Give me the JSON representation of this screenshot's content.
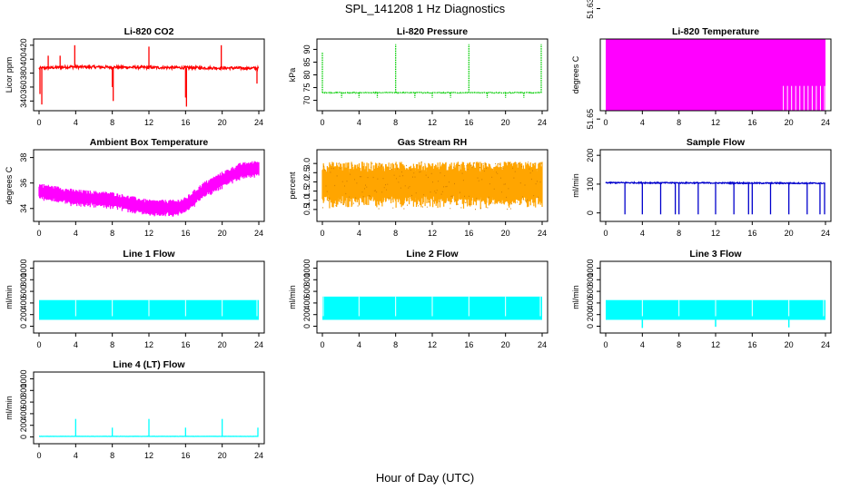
{
  "figure": {
    "title": "SPL_141208  1 Hz Diagnostics",
    "xlabel": "Hour of Day (UTC)"
  },
  "chart_data": [
    {
      "type": "line",
      "title": "Li-820 CO2",
      "ylabel": "Licor ppm",
      "color": "#ff0000",
      "xlim": [
        0,
        24
      ],
      "ylim": [
        330,
        425
      ],
      "yticks": [
        340,
        360,
        380,
        400,
        420
      ],
      "xticks": [
        0,
        4,
        8,
        12,
        16,
        20,
        24
      ],
      "style": "noisy",
      "baseline": [
        [
          0,
          387
        ],
        [
          3.5,
          389
        ],
        [
          24,
          387
        ]
      ],
      "noise": 2,
      "spikes": [
        [
          0.1,
          350
        ],
        [
          0.3,
          335
        ],
        [
          1.0,
          405
        ],
        [
          2.3,
          405
        ],
        [
          3.9,
          420
        ],
        [
          8.0,
          360
        ],
        [
          8.1,
          340
        ],
        [
          12.0,
          418
        ],
        [
          16.0,
          345
        ],
        [
          16.1,
          332
        ],
        [
          19.9,
          420
        ],
        [
          23.8,
          365
        ]
      ]
    },
    {
      "type": "line",
      "title": "Li-820 Pressure",
      "ylabel": "kPa",
      "color": "#00cc00",
      "xlim": [
        0,
        24
      ],
      "ylim": [
        67,
        93
      ],
      "yticks": [
        70,
        75,
        80,
        85,
        90
      ],
      "xticks": [
        0,
        4,
        8,
        12,
        16,
        20,
        24
      ],
      "style": "dotted",
      "baseline": [
        [
          0,
          73
        ],
        [
          24,
          73
        ]
      ],
      "noise": 0.15,
      "spikes": [
        [
          0.0,
          89
        ],
        [
          2.1,
          71
        ],
        [
          4.0,
          71
        ],
        [
          6.0,
          71
        ],
        [
          8.0,
          92
        ],
        [
          10.1,
          71
        ],
        [
          12.0,
          71
        ],
        [
          14.0,
          71
        ],
        [
          16.0,
          92
        ],
        [
          18.0,
          71
        ],
        [
          20.0,
          71
        ],
        [
          22.0,
          71
        ],
        [
          23.9,
          92
        ]
      ]
    },
    {
      "type": "line",
      "title": "Li-820 Temperature",
      "ylabel": "degrees C",
      "color": "#ff00ff",
      "xlim": [
        0,
        24
      ],
      "ylim": [
        51.648,
        51.636
      ],
      "ylim_note": "value axis shows only two ticks",
      "yticks": [
        51.65,
        51.63
      ],
      "ytick_labels": [
        "51.65",
        "51.63"
      ],
      "xticks": [
        0,
        4,
        8,
        12,
        16,
        20,
        24
      ],
      "style": "block",
      "block_from": 51.65,
      "block_to": 51.63,
      "gaps_after": 19.4
    },
    {
      "type": "line",
      "title": "Ambient Box Temperature",
      "ylabel": "degrees C",
      "color": "#ff00ff",
      "xlim": [
        0,
        24
      ],
      "ylim": [
        33.2,
        38.4
      ],
      "yticks": [
        34,
        36,
        38
      ],
      "xticks": [
        0,
        4,
        8,
        12,
        16,
        20,
        24
      ],
      "style": "band",
      "band_center": [
        [
          0,
          35.3
        ],
        [
          4,
          34.8
        ],
        [
          8,
          34.6
        ],
        [
          12,
          34.0
        ],
        [
          15,
          34.0
        ],
        [
          16,
          34.2
        ],
        [
          18,
          35.4
        ],
        [
          20,
          36.2
        ],
        [
          22,
          36.9
        ],
        [
          24,
          37.1
        ]
      ],
      "band_half_width": 0.7
    },
    {
      "type": "line",
      "title": "Gas Stream RH",
      "ylabel": "percent",
      "color": "#ffa500",
      "xlim": [
        0,
        24
      ],
      "ylim": [
        0.0,
        3.6
      ],
      "yticks": [
        0.5,
        1.5,
        2.5
      ],
      "ytick_labels": [
        "0.5",
        "1.5",
        "2.5"
      ],
      "yticks_extra": [
        1.0,
        2.0,
        3.0
      ],
      "ytick_labels_extra": [
        "1.0",
        "2.0",
        "3.0"
      ],
      "xticks": [
        0,
        4,
        8,
        12,
        16,
        20,
        24
      ],
      "style": "band",
      "band_center": [
        [
          0,
          1.8
        ],
        [
          24,
          1.8
        ]
      ],
      "band_half_width": 1.3
    },
    {
      "type": "line",
      "title": "Sample Flow",
      "ylabel": "ml/min",
      "color": "#0000cc",
      "xlim": [
        0,
        24
      ],
      "ylim": [
        -20,
        210
      ],
      "yticks": [
        0,
        100,
        200
      ],
      "xticks": [
        0,
        4,
        8,
        12,
        16,
        20,
        24
      ],
      "style": "noisy",
      "baseline": [
        [
          0,
          105
        ],
        [
          24,
          103
        ]
      ],
      "noise": 2,
      "spikes": [
        [
          2.1,
          -5
        ],
        [
          4.0,
          -5
        ],
        [
          6.0,
          -5
        ],
        [
          7.6,
          -5
        ],
        [
          8.0,
          -5
        ],
        [
          10.1,
          -5
        ],
        [
          12.0,
          -5
        ],
        [
          14.0,
          -5
        ],
        [
          15.6,
          -5
        ],
        [
          16.0,
          -5
        ],
        [
          18.0,
          -5
        ],
        [
          20.0,
          -5
        ],
        [
          22.0,
          -5
        ],
        [
          23.4,
          -5
        ],
        [
          23.9,
          -5
        ]
      ]
    },
    {
      "type": "line",
      "title": "Line 1 Flow",
      "ylabel": "ml/min",
      "color": "#00ffff",
      "xlim": [
        0,
        24
      ],
      "ylim": [
        -70,
        1070
      ],
      "yticks": [
        0,
        200,
        400,
        600,
        800,
        1000
      ],
      "xticks": [
        0,
        4,
        8,
        12,
        16,
        20,
        24
      ],
      "style": "block",
      "block_from": 110,
      "block_to": 450,
      "white_gaps": [
        4.0,
        8.0,
        12.0,
        16.0,
        20.0,
        23.8
      ]
    },
    {
      "type": "line",
      "title": "Line 2 Flow",
      "ylabel": "ml/min",
      "color": "#00ffff",
      "xlim": [
        0,
        24
      ],
      "ylim": [
        -70,
        1070
      ],
      "yticks": [
        0,
        200,
        400,
        600,
        800,
        1000
      ],
      "xticks": [
        0,
        4,
        8,
        12,
        16,
        20,
        24
      ],
      "style": "block",
      "block_from": 110,
      "block_to": 510,
      "white_gaps": [
        0.1,
        4.0,
        8.0,
        12.0,
        16.0,
        20.0,
        23.8
      ]
    },
    {
      "type": "line",
      "title": "Line 3 Flow",
      "ylabel": "ml/min",
      "color": "#00ffff",
      "xlim": [
        0,
        24
      ],
      "ylim": [
        -70,
        1070
      ],
      "yticks": [
        0,
        200,
        400,
        600,
        800,
        1000
      ],
      "xticks": [
        0,
        4,
        8,
        12,
        16,
        20,
        24
      ],
      "style": "block",
      "block_from": 110,
      "block_to": 450,
      "white_gaps": [
        4.0,
        8.0,
        12.0,
        16.0,
        20.0,
        23.8
      ],
      "dips": [
        [
          4.0,
          -30
        ],
        [
          12.0,
          -10
        ],
        [
          20.0,
          -20
        ]
      ]
    },
    {
      "type": "line",
      "title": "Line 4 (LT) Flow",
      "ylabel": "ml/min",
      "color": "#00ffff",
      "xlim": [
        0,
        24
      ],
      "ylim": [
        -70,
        1070
      ],
      "yticks": [
        0,
        200,
        400,
        600,
        800,
        1000
      ],
      "xticks": [
        0,
        4,
        8,
        12,
        16,
        20,
        24
      ],
      "style": "noisy",
      "baseline": [
        [
          0,
          10
        ],
        [
          24,
          10
        ]
      ],
      "noise": 2,
      "spikes": [
        [
          4.0,
          310
        ],
        [
          8.0,
          160
        ],
        [
          12.0,
          310
        ],
        [
          16.0,
          160
        ],
        [
          20.0,
          310
        ],
        [
          23.9,
          160
        ]
      ]
    }
  ]
}
